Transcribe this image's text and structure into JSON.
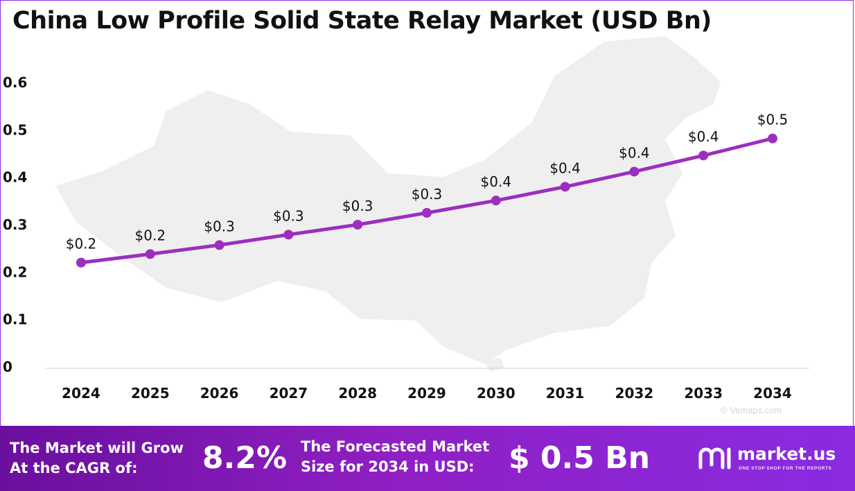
{
  "title": "China Low Profile Solid State Relay Market (USD Bn)",
  "chart_data": {
    "type": "line",
    "title": "China Low Profile Solid State Relay Market (USD Bn)",
    "x": [
      "2024",
      "2025",
      "2026",
      "2027",
      "2028",
      "2029",
      "2030",
      "2031",
      "2032",
      "2033",
      "2034"
    ],
    "series": [
      {
        "values": [
          0.22,
          0.238,
          0.257,
          0.279,
          0.3,
          0.325,
          0.351,
          0.38,
          0.412,
          0.446,
          0.482
        ],
        "labels": [
          "$0.2",
          "$0.2",
          "$0.3",
          "$0.3",
          "$0.3",
          "$0.3",
          "$0.4",
          "$0.4",
          "$0.4",
          "$0.4",
          "$0.5"
        ],
        "color": "#9b2fbe"
      }
    ],
    "yticks": [
      "0",
      "0.1",
      "0.2",
      "0.3",
      "0.4",
      "0.5",
      "0.6"
    ],
    "ylim": [
      0,
      0.6
    ],
    "xlabel": "",
    "ylabel": "",
    "grid": false,
    "legend": "none"
  },
  "banner": {
    "cagr_label": "The Market will Grow\nAt the CAGR of:",
    "cagr_value": "8.2%",
    "forecast_label": "The Forecasted Market\nSize for 2034 in USD:",
    "forecast_value": "$ 0.5 Bn"
  },
  "logo": {
    "name": "market.us",
    "tagline": "ONE STOP SHOP FOR THE REPORTS"
  },
  "credit": "© Vemaps.com",
  "colors": {
    "line": "#9b2fbe",
    "banner_start": "#6a0f9e",
    "banner_end": "#8a2be2",
    "map": "#efefef"
  }
}
